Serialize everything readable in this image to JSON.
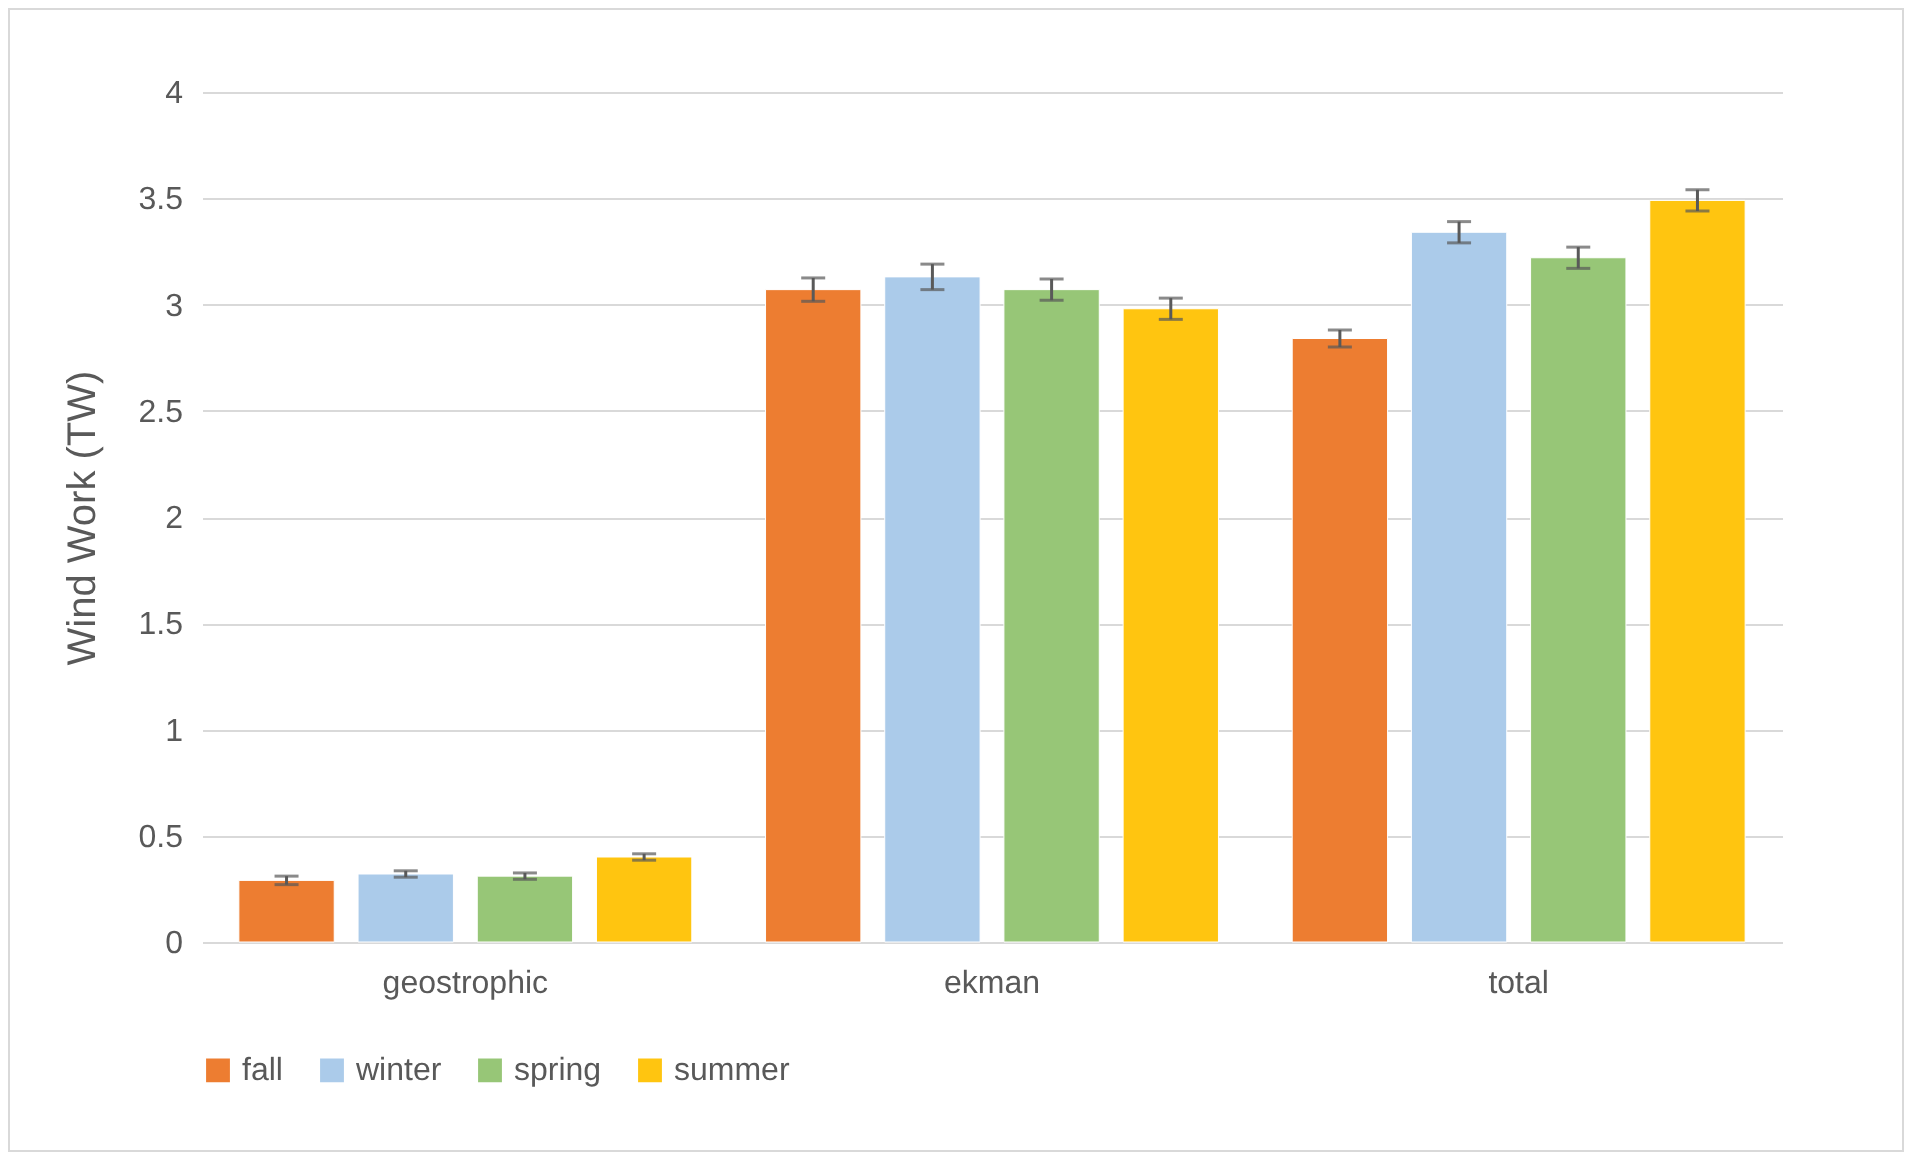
{
  "chart_data": {
    "type": "bar",
    "ylabel": "Wind Work (TW)",
    "categories": [
      "geostrophic",
      "ekman",
      "total"
    ],
    "series": [
      {
        "name": "fall",
        "color": "#ed7d31",
        "values": [
          0.29,
          3.07,
          2.84
        ],
        "errors": [
          0.02,
          0.055,
          0.04
        ]
      },
      {
        "name": "winter",
        "color": "#abcbea",
        "values": [
          0.32,
          3.13,
          3.34
        ],
        "errors": [
          0.015,
          0.06,
          0.05
        ]
      },
      {
        "name": "spring",
        "color": "#97c677",
        "values": [
          0.31,
          3.07,
          3.22
        ],
        "errors": [
          0.015,
          0.05,
          0.05
        ]
      },
      {
        "name": "summer",
        "color": "#ffc510",
        "values": [
          0.4,
          2.98,
          3.49
        ],
        "errors": [
          0.015,
          0.05,
          0.05
        ]
      }
    ],
    "ylim": [
      0,
      4
    ],
    "yticks": [
      0,
      0.5,
      1,
      1.5,
      2,
      2.5,
      3,
      3.5,
      4
    ],
    "grid": "y",
    "legend": "bottom"
  }
}
